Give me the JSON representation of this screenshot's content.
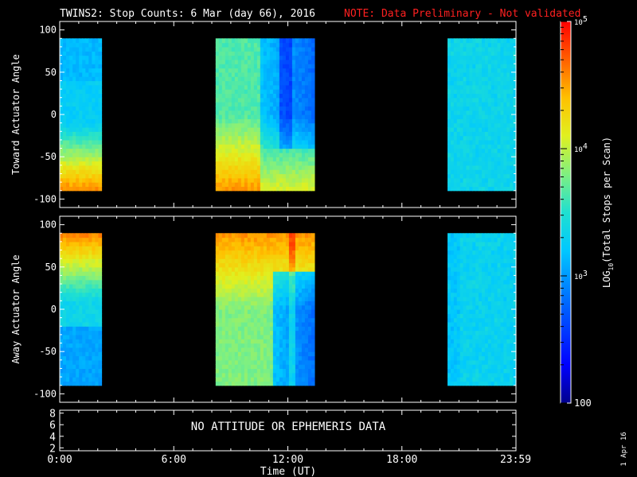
{
  "title": {
    "main": "TWINS2: Stop Counts:  6 Mar (day  66), 2016",
    "note": "NOTE: Data Preliminary - Not validated",
    "note_color": "#ff2020"
  },
  "side_date": "1 Apr 16",
  "chart_data": [
    {
      "type": "heatmap",
      "panel": "toward",
      "ylabel": "Toward Actuator Angle",
      "ylim": [
        -110,
        110
      ],
      "yticks": [
        100,
        50,
        0,
        -50,
        -100
      ],
      "data_y_range": [
        -90,
        90
      ],
      "time_blocks_hours": [
        [
          0.0,
          2.2
        ],
        [
          8.2,
          13.4
        ],
        [
          20.4,
          24.0
        ]
      ]
    },
    {
      "type": "heatmap",
      "panel": "away",
      "ylabel": "Away Actuator Angle",
      "ylim": [
        -110,
        110
      ],
      "yticks": [
        100,
        50,
        0,
        -50,
        -100
      ],
      "data_y_range": [
        -90,
        90
      ],
      "time_blocks_hours": [
        [
          0.0,
          2.2
        ],
        [
          8.2,
          13.4
        ],
        [
          20.4,
          24.0
        ]
      ]
    },
    {
      "type": "line",
      "panel": "ephemeris",
      "ylim": [
        1.5,
        8.5
      ],
      "yticks": [
        "8",
        "6",
        "4",
        "2"
      ],
      "message": "NO ATTITUDE OR EPHEMERIS DATA"
    }
  ],
  "x_axis": {
    "label": "Time (UT)",
    "range_hours": [
      0,
      24
    ],
    "ticks": [
      {
        "h": 0,
        "label": "0:00"
      },
      {
        "h": 6,
        "label": "6:00"
      },
      {
        "h": 12,
        "label": "12:00"
      },
      {
        "h": 18,
        "label": "18:00"
      },
      {
        "h": 23.98,
        "label": "23:59"
      }
    ]
  },
  "colorbar": {
    "label": "LOG",
    "label_sub": "10",
    "label_rest": "(Total Stops per Scan)",
    "ticks": [
      {
        "value": 100,
        "label": "100"
      },
      {
        "value": 1000,
        "label": "10",
        "exp": "3"
      },
      {
        "value": 10000,
        "label": "10",
        "exp": "4"
      },
      {
        "value": 100000,
        "label": "10",
        "exp": "5"
      }
    ],
    "range": [
      100,
      100000
    ]
  }
}
